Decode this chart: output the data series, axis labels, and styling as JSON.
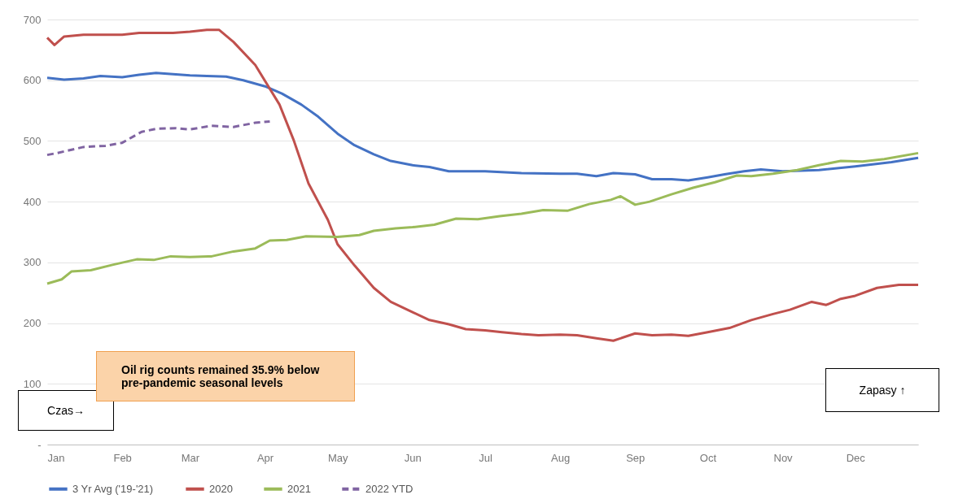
{
  "chart_data": {
    "type": "line",
    "xlim": [
      "--01-01",
      "--12-27"
    ],
    "ylim": [
      0,
      700
    ],
    "xticks": [
      {
        "value": "--01-01",
        "label": "Jan"
      },
      {
        "value": "--02-01",
        "label": "Feb"
      },
      {
        "value": "--03-01",
        "label": "Mar"
      },
      {
        "value": "--04-01",
        "label": "Apr"
      },
      {
        "value": "--05-01",
        "label": "May"
      },
      {
        "value": "--06-01",
        "label": "Jun"
      },
      {
        "value": "--07-01",
        "label": "Jul"
      },
      {
        "value": "--08-01",
        "label": "Aug"
      },
      {
        "value": "--09-01",
        "label": "Sep"
      },
      {
        "value": "--10-01",
        "label": "Oct"
      },
      {
        "value": "--11-01",
        "label": "Nov"
      },
      {
        "value": "--12-01",
        "label": "Dec"
      }
    ],
    "yticks": [
      {
        "value": 0,
        "label": "-"
      },
      100,
      200,
      300,
      400,
      500,
      600,
      700
    ],
    "grid": "y",
    "legend": "bottom",
    "marker": "none",
    "series": [
      {
        "name": "3 Yr Avg ('19-'21)",
        "color": "#4472c4",
        "line_style": "solid",
        "x": [
          "--01-01",
          "--01-08",
          "--01-16",
          "--01-23",
          "--02-01",
          "--02-08",
          "--02-15",
          "--02-22",
          "--03-01",
          "--03-08",
          "--03-16",
          "--03-23",
          "--04-01",
          "--04-08",
          "--04-16",
          "--04-23",
          "--05-01",
          "--05-08",
          "--05-16",
          "--05-23",
          "--06-01",
          "--06-08",
          "--06-16",
          "--07-01",
          "--07-16",
          "--08-01",
          "--08-08",
          "--08-16",
          "--08-23",
          "--09-01",
          "--09-08",
          "--09-16",
          "--09-23",
          "--10-01",
          "--10-08",
          "--10-16",
          "--10-23",
          "--11-01",
          "--11-16",
          "--12-01",
          "--12-16",
          "--12-27"
        ],
        "values": [
          604,
          601,
          603,
          607,
          605,
          609,
          612,
          610,
          608,
          607,
          606,
          600,
          590,
          578,
          560,
          540,
          512,
          493,
          478,
          467,
          460,
          457,
          450,
          450,
          447,
          446,
          446,
          442,
          447,
          445,
          437,
          437,
          435,
          440,
          445,
          450,
          453,
          450,
          452,
          458,
          465,
          472
        ]
      },
      {
        "name": "2020",
        "color": "#c0504d",
        "line_style": "solid",
        "x": [
          "--01-01",
          "--01-04",
          "--01-08",
          "--01-16",
          "--02-01",
          "--02-08",
          "--02-15",
          "--02-22",
          "--03-01",
          "--03-08",
          "--03-13",
          "--03-19",
          "--03-28",
          "--04-07",
          "--04-13",
          "--04-19",
          "--04-27",
          "--05-01",
          "--05-08",
          "--05-16",
          "--05-23",
          "--06-01",
          "--06-08",
          "--06-16",
          "--06-23",
          "--07-01",
          "--07-08",
          "--07-16",
          "--07-23",
          "--08-01",
          "--08-08",
          "--08-16",
          "--08-23",
          "--09-01",
          "--09-08",
          "--09-16",
          "--09-23",
          "--10-01",
          "--10-10",
          "--10-19",
          "--10-28",
          "--11-04",
          "--11-13",
          "--11-19",
          "--11-25",
          "--12-01",
          "--12-10",
          "--12-19",
          "--12-27"
        ],
        "values": [
          670,
          658,
          672,
          675,
          675,
          678,
          678,
          678,
          680,
          683,
          683,
          663,
          625,
          560,
          500,
          430,
          370,
          330,
          295,
          258,
          235,
          218,
          205,
          198,
          190,
          188,
          185,
          182,
          180,
          181,
          180,
          175,
          171,
          183,
          180,
          181,
          179,
          185,
          192,
          205,
          215,
          222,
          235,
          230,
          240,
          245,
          258,
          263,
          263
        ]
      },
      {
        "name": "2021",
        "color": "#9bbb59",
        "line_style": "solid",
        "x": [
          "--01-01",
          "--01-07",
          "--01-11",
          "--01-19",
          "--01-28",
          "--02-07",
          "--02-14",
          "--02-21",
          "--03-01",
          "--03-10",
          "--03-19",
          "--03-28",
          "--04-03",
          "--04-10",
          "--04-18",
          "--05-01",
          "--05-10",
          "--05-16",
          "--05-25",
          "--06-01",
          "--06-10",
          "--06-19",
          "--06-28",
          "--07-07",
          "--07-16",
          "--07-25",
          "--08-04",
          "--08-13",
          "--08-22",
          "--08-26",
          "--09-01",
          "--09-07",
          "--09-16",
          "--09-25",
          "--10-04",
          "--10-13",
          "--10-19",
          "--10-28",
          "--11-07",
          "--11-16",
          "--11-25",
          "--12-04",
          "--12-13",
          "--12-27"
        ],
        "values": [
          265,
          272,
          285,
          287,
          296,
          305,
          304,
          310,
          309,
          310,
          318,
          323,
          336,
          337,
          343,
          342,
          345,
          352,
          356,
          358,
          362,
          372,
          371,
          376,
          380,
          386,
          385,
          396,
          403,
          409,
          395,
          400,
          412,
          423,
          432,
          443,
          442,
          446,
          452,
          460,
          467,
          466,
          470,
          480
        ]
      },
      {
        "name": "2022 YTD",
        "color": "#8064a2",
        "line_style": "dashed",
        "x": [
          "--01-01",
          "--01-05",
          "--01-16",
          "--01-25",
          "--02-01",
          "--02-09",
          "--02-15",
          "--02-23",
          "--03-01",
          "--03-10",
          "--03-19",
          "--03-28",
          "--04-03"
        ],
        "values": [
          477,
          480,
          490,
          492,
          497,
          515,
          520,
          521,
          519,
          525,
          523,
          530,
          532
        ]
      }
    ],
    "annotations": [
      "Oil rig counts remained 35.9% below pre-pandemic seasonal levels",
      "Czas→",
      "Zapasy ↑"
    ]
  }
}
